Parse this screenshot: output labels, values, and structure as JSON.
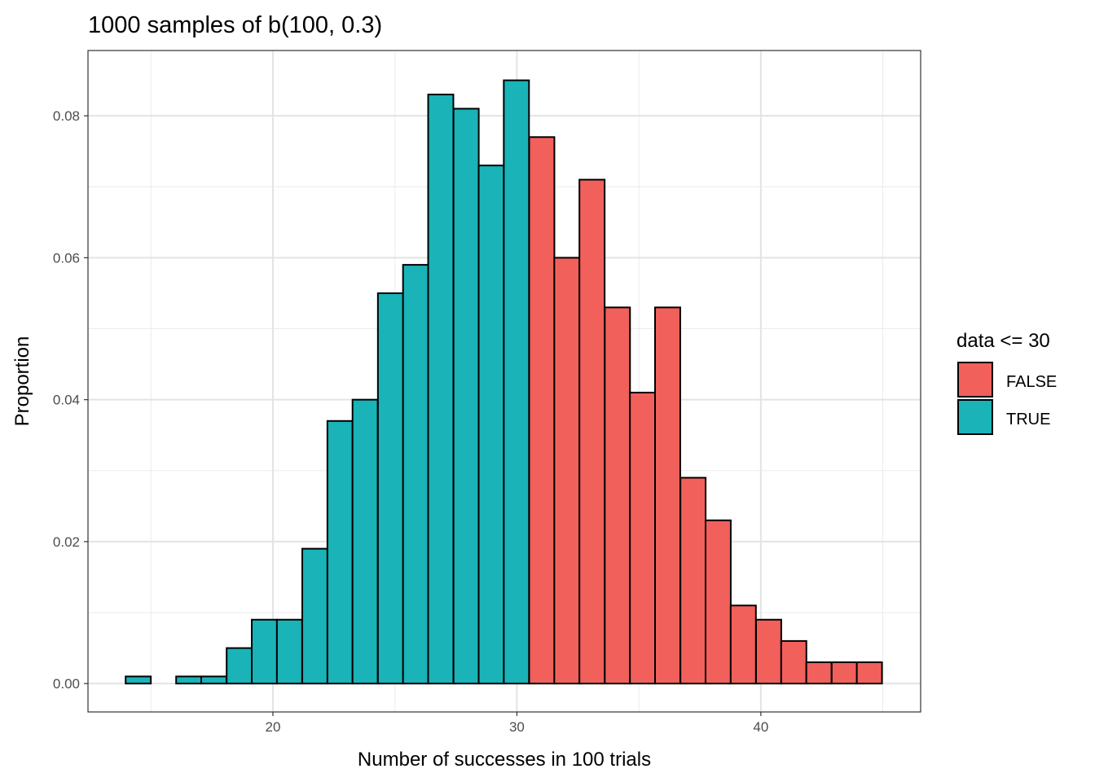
{
  "chart_data": {
    "type": "bar",
    "title": "1000 samples of b(100, 0.3)",
    "xlabel": "Number of successes in 100 trials",
    "ylabel": "Proportion",
    "xlim": [
      12.42,
      46.55
    ],
    "ylim": [
      -0.004,
      0.0892
    ],
    "x_ticks": [
      20,
      30,
      40
    ],
    "x_tick_labels": [
      "20",
      "30",
      "40"
    ],
    "y_ticks": [
      0,
      0.02,
      0.04,
      0.06,
      0.08
    ],
    "y_tick_labels": [
      "0.00",
      "0.02",
      "0.04",
      "0.06",
      "0.08"
    ],
    "grid": true,
    "bin_width": 1.0333,
    "bin_centers": [
      14.48,
      15.52,
      16.55,
      17.58,
      18.62,
      19.65,
      20.68,
      21.72,
      22.75,
      23.78,
      24.82,
      25.85,
      26.88,
      27.92,
      28.95,
      29.98,
      31.02,
      32.05,
      33.08,
      34.12,
      35.15,
      36.18,
      37.22,
      38.25,
      39.28,
      40.32,
      41.35,
      42.38,
      43.42,
      44.45
    ],
    "values": [
      0.001,
      0,
      0.001,
      0.001,
      0.005,
      0.009,
      0.009,
      0.019,
      0.037,
      0.04,
      0.055,
      0.059,
      0.083,
      0.081,
      0.073,
      0.085,
      0.077,
      0.06,
      0.071,
      0.053,
      0.041,
      0.053,
      0.029,
      0.023,
      0.011,
      0.009,
      0.006,
      0.003,
      0.003,
      0.003
    ],
    "groups": [
      "TRUE",
      "TRUE",
      "TRUE",
      "TRUE",
      "TRUE",
      "TRUE",
      "TRUE",
      "TRUE",
      "TRUE",
      "TRUE",
      "TRUE",
      "TRUE",
      "TRUE",
      "TRUE",
      "TRUE",
      "TRUE",
      "FALSE",
      "FALSE",
      "FALSE",
      "FALSE",
      "FALSE",
      "FALSE",
      "FALSE",
      "FALSE",
      "FALSE",
      "FALSE",
      "FALSE",
      "FALSE",
      "FALSE",
      "FALSE"
    ],
    "legend": {
      "title": "data <= 30",
      "position": "right",
      "entries": [
        {
          "label": "FALSE",
          "color": "#F8766D"
        },
        {
          "label": "TRUE",
          "color": "#00BFC4"
        }
      ]
    },
    "colors": {
      "FALSE": "#F2605B",
      "TRUE": "#19B3B8"
    }
  }
}
